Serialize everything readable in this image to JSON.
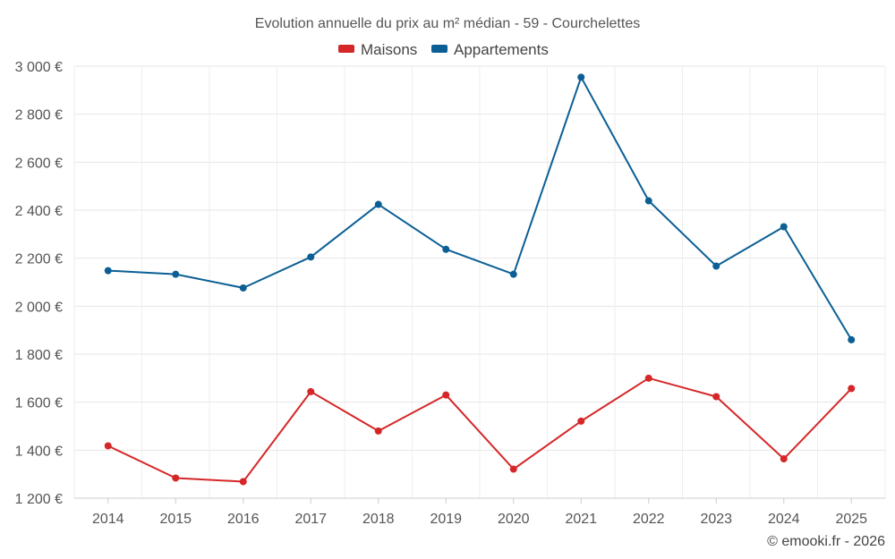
{
  "chart_data": {
    "type": "line",
    "title": "Evolution annuelle du prix au m² médian - 59 - Courchelettes",
    "xlabel": "",
    "ylabel": "",
    "categories": [
      "2014",
      "2015",
      "2016",
      "2017",
      "2018",
      "2019",
      "2020",
      "2021",
      "2022",
      "2023",
      "2024",
      "2025"
    ],
    "ylim": [
      1200,
      3000
    ],
    "yticks": [
      1200,
      1400,
      1600,
      1800,
      2000,
      2200,
      2400,
      2600,
      2800,
      3000
    ],
    "ytick_labels": [
      "1 200 €",
      "1 400 €",
      "1 600 €",
      "1 800 €",
      "2 000 €",
      "2 200 €",
      "2 400 €",
      "2 600 €",
      "2 800 €",
      "3 000 €"
    ],
    "grid": true,
    "legend_position": "top-center",
    "series": [
      {
        "name": "Maisons",
        "color": "#d62728",
        "values": [
          1418,
          1284,
          1269,
          1644,
          1480,
          1630,
          1321,
          1521,
          1700,
          1623,
          1364,
          1657
        ]
      },
      {
        "name": "Appartements",
        "color": "#0b5f95",
        "values": [
          2148,
          2133,
          2076,
          2205,
          2424,
          2237,
          2133,
          2954,
          2439,
          2167,
          2331,
          1860
        ]
      }
    ],
    "credit": "© emooki.fr - 2026"
  }
}
